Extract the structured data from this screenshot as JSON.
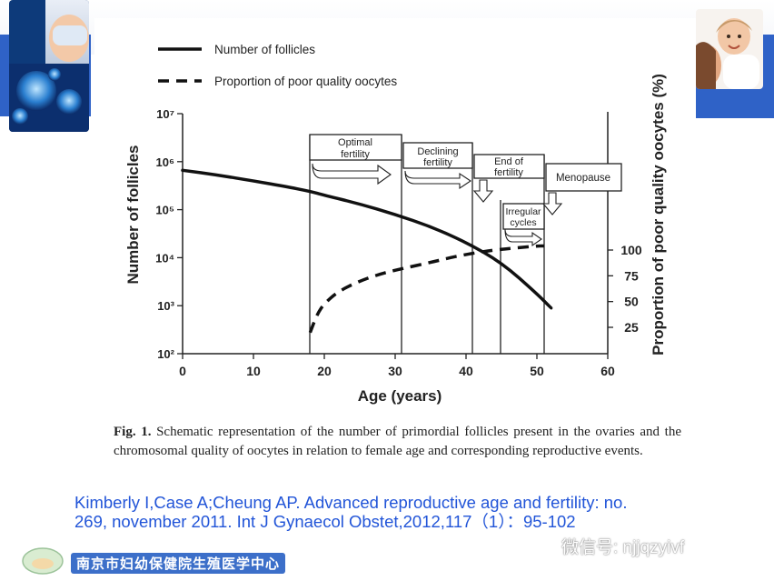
{
  "slide": {
    "caption_label": "Fig. 1.",
    "caption_text": "Schematic representation of the number of primordial follicles present in the ovaries and the chromosomal quality of oocytes in relation to female age and corresponding reproductive events.",
    "citation_line1": "Kimberly I,Case A;Cheung AP. Advanced reproductive age and fertility: no.",
    "citation_line2": "269, november 2011. Int J Gynaecol Obstet,2012,117（1）：95-102",
    "footer_org": "南京市妇幼保健院生殖医学中心",
    "watermark": "微信号: njjqzyivf"
  },
  "colors": {
    "accent_blue": "#2f62c7",
    "citation_blue": "#2255d8",
    "line_black": "#111111"
  },
  "chart_data": {
    "type": "line",
    "xlabel": "Age (years)",
    "ylabel_left": "Number of follicles",
    "ylabel_right": "Proportion of poor quality oocytes (%)",
    "xlim": [
      0,
      60
    ],
    "x_ticks": [
      "0",
      "10",
      "20",
      "30",
      "40",
      "50",
      "60"
    ],
    "y_left_log_scale": true,
    "y_left_ticks": [
      "10²",
      "10³",
      "10⁴",
      "10⁵",
      "10⁶",
      "10⁷"
    ],
    "y_left_exponents": [
      2,
      3,
      4,
      5,
      6,
      7
    ],
    "y_right_ticks": [
      "25",
      "50",
      "75",
      "100"
    ],
    "y_right_values": [
      25,
      50,
      75,
      100
    ],
    "legend": [
      {
        "label": "Number of follicles",
        "style": "solid"
      },
      {
        "label": "Proportion of poor quality oocytes",
        "style": "dashed"
      }
    ],
    "legend_position": "top-left, above plot",
    "series": [
      {
        "name": "Number of follicles",
        "axis": "left",
        "style": "solid",
        "x": [
          0,
          5,
          10,
          15,
          18,
          20,
          25,
          30,
          35,
          40,
          45,
          50,
          52
        ],
        "y_log10": [
          5.82,
          5.72,
          5.6,
          5.47,
          5.38,
          5.3,
          5.12,
          4.9,
          4.65,
          4.32,
          3.9,
          3.25,
          2.95
        ]
      },
      {
        "name": "Proportion of poor quality oocytes",
        "axis": "right",
        "style": "dashed",
        "x": [
          18,
          19,
          20,
          22,
          25,
          28,
          31,
          35,
          38,
          41,
          44,
          47,
          50,
          51
        ],
        "y": [
          20,
          38,
          48,
          60,
          70,
          77,
          82,
          88,
          93,
          97,
          100,
          102,
          104,
          104
        ]
      }
    ],
    "events": [
      {
        "label": "Optimal fertility",
        "start": 18,
        "end": 31
      },
      {
        "label": "Declining fertility",
        "start": 31,
        "end": 41
      },
      {
        "label": "End of fertility",
        "start": 41,
        "end": 51
      },
      {
        "label": "Irregular cycles",
        "start": 45,
        "end": 51
      },
      {
        "label": "Menopause",
        "start": 51,
        "end": 51
      }
    ]
  }
}
